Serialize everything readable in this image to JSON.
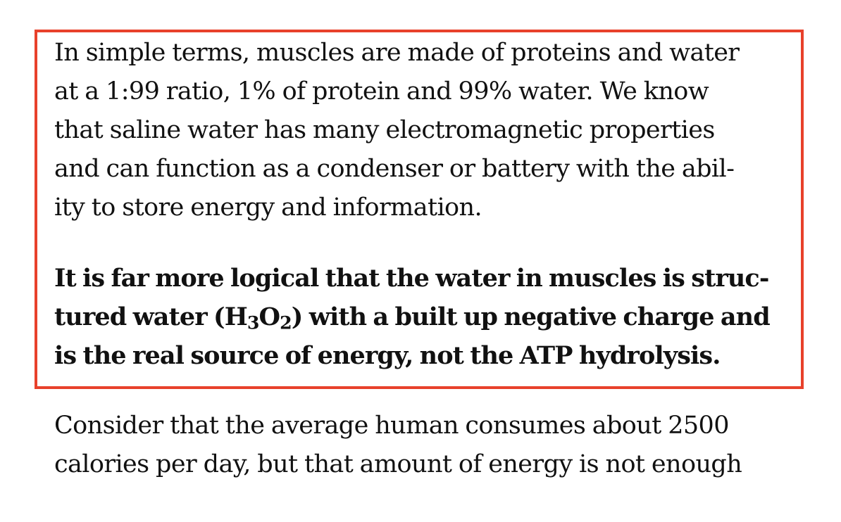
{
  "highlight": {
    "border_color": "#e8412b",
    "paragraph1": {
      "lines": [
        "In simple terms, muscles are made of proteins and water",
        "at a 1:99 ratio, 1% of protein and 99% water. We know",
        "that saline water has many electromagnetic properties",
        "and can function as a condenser or battery with the abil-",
        "ity to store energy and information."
      ]
    },
    "paragraph2": {
      "line1": "It is far more logical that the water in muscles is struc-",
      "line2_prefix": "tured water (H",
      "line2_sub1": "3",
      "line2_mid": "O",
      "line2_sub2": "2",
      "line2_suffix": ") with a built up negative charge and",
      "line3": "is the real source of energy, not the ATP hydrolysis."
    }
  },
  "paragraph3": {
    "lines": [
      "Consider that the average human consumes about 2500",
      "calories per day, but that amount of energy is not enough"
    ]
  }
}
